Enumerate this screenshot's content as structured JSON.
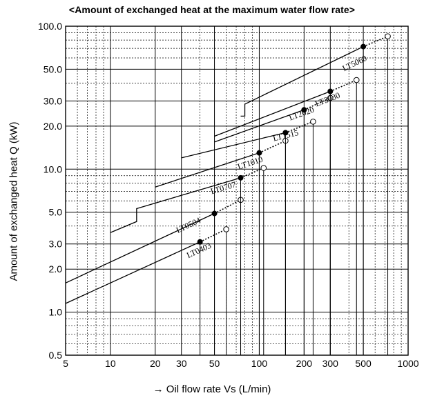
{
  "chart_data": {
    "type": "line",
    "title": "<Amount of exchanged heat at the maximum water flow rate>",
    "xlabel": "→  Oil flow rate Vs (L/min)",
    "ylabel": "Amount of exchanged heat Q (kW)",
    "x_scale": "log",
    "y_scale": "log",
    "xlim": [
      5,
      1000
    ],
    "ylim": [
      0.5,
      100
    ],
    "grid": true,
    "x_ticks": [
      5,
      10,
      20,
      30,
      50,
      100,
      200,
      300,
      500,
      1000
    ],
    "x_tick_labels": [
      "5",
      "10",
      "20",
      "30",
      "50",
      "100",
      "200",
      "300",
      "500",
      "1000"
    ],
    "y_ticks": [
      0.5,
      1,
      2,
      3,
      5,
      10,
      20,
      30,
      50,
      100
    ],
    "y_tick_labels": [
      "0.5",
      "1.0",
      "2.0",
      "3.0",
      "5.0",
      "10.0",
      "20.0",
      "30.0",
      "50.0",
      "100.0"
    ],
    "series": [
      {
        "name": "LT0403",
        "line": [
          [
            5,
            1.15
          ],
          [
            40,
            3.1
          ]
        ],
        "dotted": [
          [
            40,
            3.1
          ],
          [
            60,
            3.8
          ]
        ],
        "filled_point": [
          40,
          3.1
        ],
        "open_point": [
          60,
          3.8
        ],
        "label_at": [
          40,
          2.6
        ]
      },
      {
        "name": "LT0504",
        "line": [
          [
            5,
            1.6
          ],
          [
            50,
            4.9
          ]
        ],
        "dotted": [
          [
            50,
            4.9
          ],
          [
            75,
            6.1
          ]
        ],
        "filled_point": [
          50,
          4.9
        ],
        "open_point": [
          75,
          6.1
        ],
        "label_at": [
          34,
          3.9
        ]
      },
      {
        "name": "LT0707",
        "line": [
          [
            10,
            3.6
          ],
          [
            15,
            4.3
          ],
          [
            15,
            5.3
          ],
          [
            75,
            8.7
          ]
        ],
        "dotted": [
          [
            75,
            8.7
          ],
          [
            107,
            10.2
          ]
        ],
        "filled_point": [
          75,
          8.7
        ],
        "open_point": [
          107,
          10.2
        ],
        "label_at": [
          58,
          7.1
        ]
      },
      {
        "name": "LT1010",
        "line": [
          [
            20,
            7.5
          ],
          [
            100,
            13
          ]
        ],
        "dotted": [
          [
            100,
            13
          ],
          [
            150,
            15.8
          ]
        ],
        "filled_point": [
          100,
          13
        ],
        "open_point": [
          150,
          15.8
        ],
        "label_at": [
          88,
          10.6
        ]
      },
      {
        "name": "LT1515",
        "line": [
          [
            30,
            12
          ],
          [
            150,
            18
          ]
        ],
        "dotted": [
          [
            150,
            18
          ],
          [
            230,
            21.5
          ]
        ],
        "filled_point": [
          150,
          18
        ],
        "open_point": [
          230,
          21.5
        ],
        "label_at": [
          152,
          16.5
        ]
      },
      {
        "name": "LT2020",
        "line": [
          [
            50,
            15.5
          ],
          [
            200,
            26
          ]
        ],
        "dotted": [
          [
            200,
            26
          ],
          [
            300,
            31.5
          ]
        ],
        "filled_point": [
          200,
          26
        ],
        "open_point": [
          300,
          31.5
        ],
        "label_at": [
          195,
          23.5
        ]
      },
      {
        "name": "LT3030",
        "line": [
          [
            50,
            17
          ],
          [
            300,
            35
          ]
        ],
        "dotted": [
          [
            300,
            35
          ],
          [
            450,
            42
          ]
        ],
        "filled_point": [
          300,
          35
        ],
        "open_point": [
          450,
          42
        ],
        "label_at": [
          292,
          29.5
        ]
      },
      {
        "name": "LT5060",
        "line": [
          [
            75,
            23.5
          ],
          [
            80,
            23.5
          ],
          [
            80,
            28.5
          ],
          [
            500,
            72
          ]
        ],
        "dotted": [
          [
            500,
            72
          ],
          [
            730,
            85
          ]
        ],
        "filled_point": [
          500,
          72
        ],
        "open_point": [
          730,
          85
        ],
        "label_at": [
          445,
          53
        ]
      }
    ]
  }
}
